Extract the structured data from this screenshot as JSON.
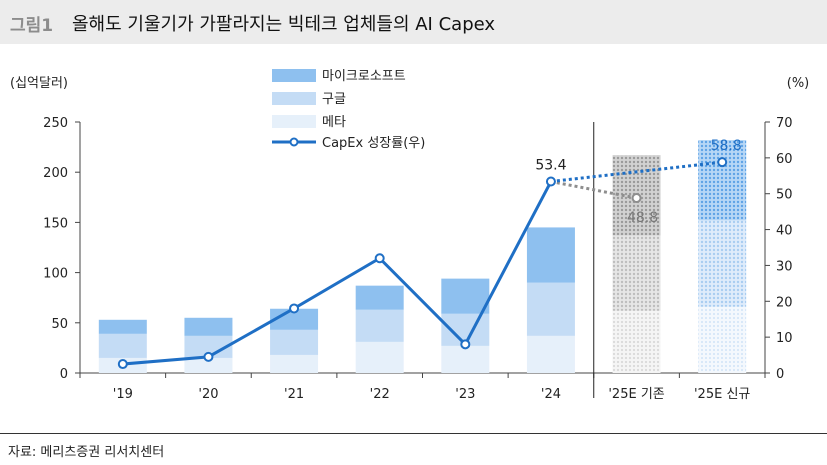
{
  "header": {
    "figure_label": "그림1",
    "title": "올해도 기울기가 가팔라지는 빅테크 업체들의 AI Capex"
  },
  "source": "자료: 메리츠증권 리서치센터",
  "colors": {
    "microsoft": "#8ec0ef",
    "google": "#c4dcf5",
    "meta": "#e6f0fa",
    "line": "#1f6fc5",
    "gray": "#8e8e8e"
  },
  "chart_data": {
    "type": "bar",
    "categories": [
      "'19",
      "'20",
      "'21",
      "'22",
      "'23",
      "'24",
      "'25E 기존",
      "'25E 신규"
    ],
    "series": [
      {
        "name": "메타",
        "values": [
          15,
          15,
          18,
          31,
          27,
          37,
          62,
          66
        ]
      },
      {
        "name": "구글",
        "values": [
          24,
          22,
          25,
          32,
          32,
          53,
          75,
          86
        ]
      },
      {
        "name": "마이크로소프트",
        "values": [
          14,
          18,
          21,
          24,
          35,
          55,
          80,
          80
        ]
      },
      {
        "name": "CapEx 성장률(우)",
        "axis": "right",
        "values": [
          2.5,
          4.5,
          18,
          32,
          8,
          53.4,
          48.8,
          58.8
        ]
      }
    ],
    "data_labels": [
      "53.4",
      "48.8",
      "58.8"
    ],
    "ylabel_left": "(십억달러)",
    "ylabel_right": "(%)",
    "ylim_left": [
      0,
      250
    ],
    "ylim_right": [
      0,
      70
    ],
    "yticks_left": [
      "0",
      "50",
      "100",
      "150",
      "200",
      "250"
    ],
    "yticks_right": [
      "0",
      "10",
      "20",
      "30",
      "40",
      "50",
      "60",
      "70"
    ],
    "forecast_categories": [
      "'25E 기존",
      "'25E 신규"
    ],
    "legend_position": "top-center",
    "grid": false
  }
}
